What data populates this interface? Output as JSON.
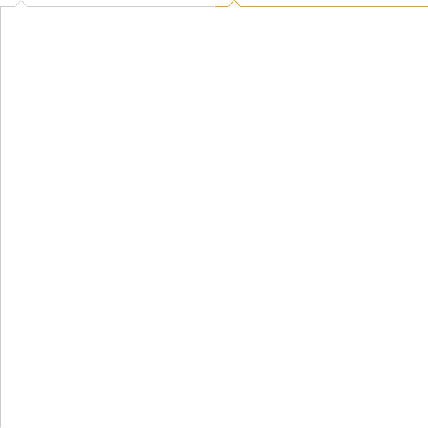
{
  "panels": [
    {
      "name": "left-popover-panel",
      "state": "inactive",
      "border_color": "#cccccc"
    },
    {
      "name": "right-popover-panel",
      "state": "active",
      "border_color": "#e8a000"
    }
  ]
}
